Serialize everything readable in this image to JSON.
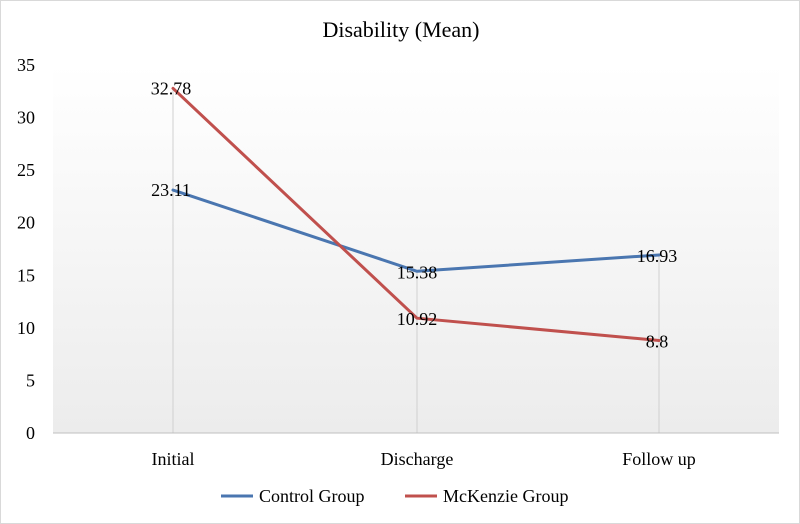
{
  "chart_data": {
    "type": "line",
    "title": "Disability (Mean)",
    "xlabel": "",
    "ylabel": "",
    "categories": [
      "Initial",
      "Discharge",
      "Follow up"
    ],
    "ylim": [
      0,
      35
    ],
    "yticks": [
      0,
      5,
      10,
      15,
      20,
      25,
      30,
      35
    ],
    "grid": false,
    "legend_position": "bottom",
    "series": [
      {
        "name": "Control Group",
        "values": [
          23.11,
          15.38,
          16.93
        ],
        "labels": [
          "23.11",
          "15.38",
          "16.93"
        ],
        "color": "#4a76b0"
      },
      {
        "name": "McKenzie Group",
        "values": [
          32.78,
          10.92,
          8.8
        ],
        "labels": [
          "32.78",
          "10.92",
          "8.8"
        ],
        "color": "#c0504d"
      }
    ]
  }
}
